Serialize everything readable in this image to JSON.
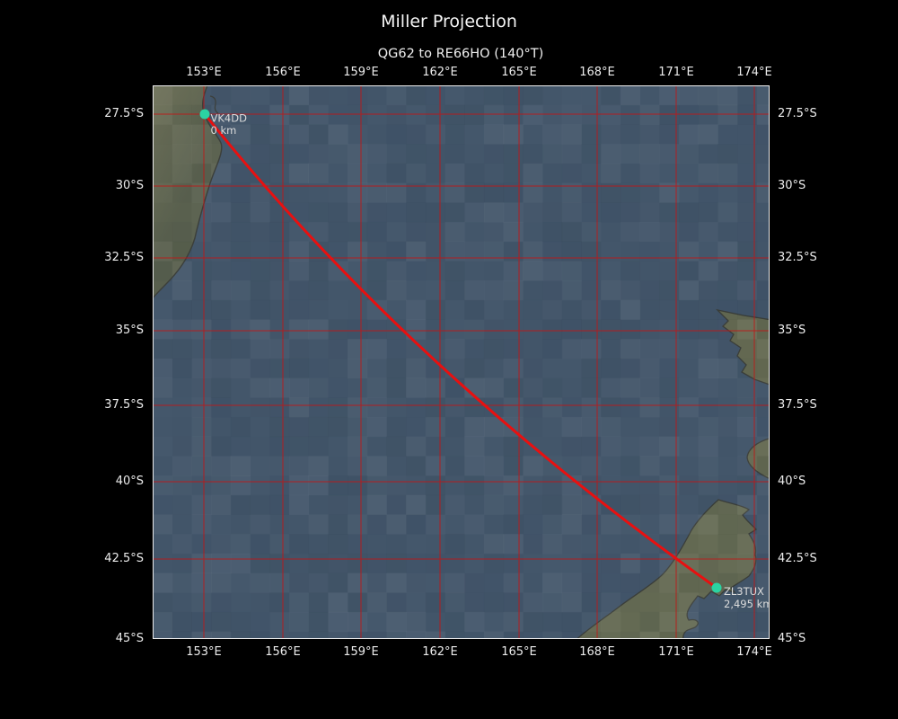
{
  "figure": {
    "title": "Miller Projection",
    "subtitle": "QG62 to RE66HO (140°T)"
  },
  "axes": {
    "longitude_ticks": [
      "153°E",
      "156°E",
      "159°E",
      "162°E",
      "165°E",
      "168°E",
      "171°E",
      "174°E"
    ],
    "latitude_ticks": [
      "27.5°S",
      "30°S",
      "32.5°S",
      "35°S",
      "37.5°S",
      "40°S",
      "42.5°S",
      "45°S"
    ]
  },
  "route": {
    "origin": {
      "callsign": "VK4DD",
      "distance": "0 km"
    },
    "destination": {
      "callsign": "ZL3TUX",
      "distance": "2,495 km"
    }
  },
  "colors": {
    "background": "#000000",
    "ocean": "#43566a",
    "land": "#666b54",
    "gridline": "#c41414",
    "track": "#e81010",
    "marker": "#2bd3a2",
    "text": "#ececec"
  }
}
